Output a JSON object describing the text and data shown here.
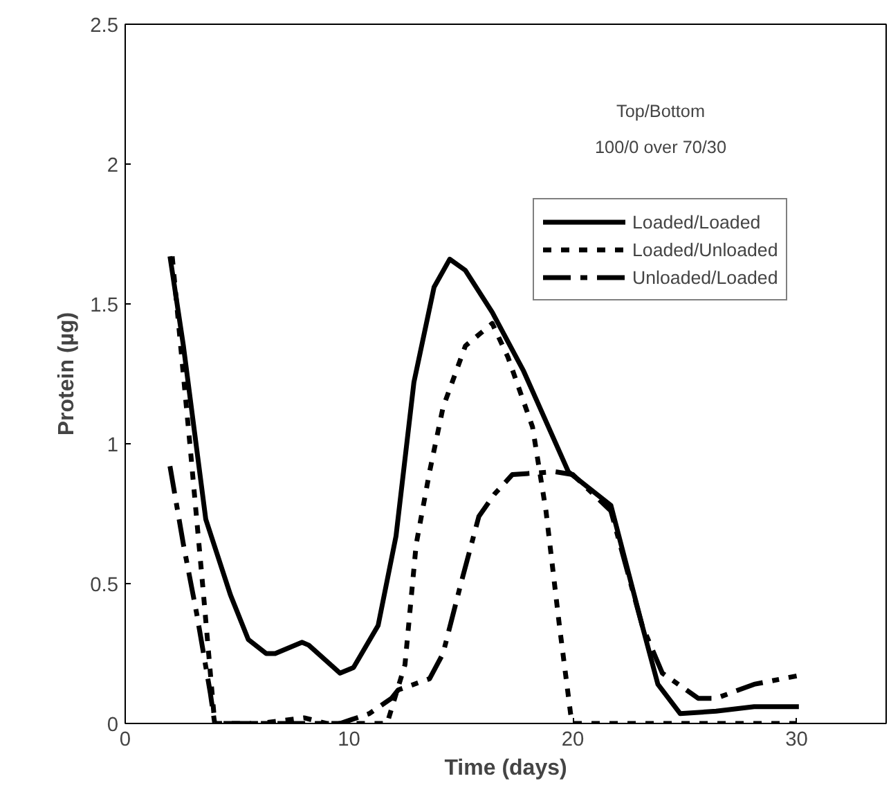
{
  "chart_data": {
    "type": "line",
    "xlabel": "Time (days)",
    "ylabel": "Protein (µg)",
    "annotations": [
      "Top/Bottom",
      "100/0 over 70/30"
    ],
    "xlim": [
      0,
      34
    ],
    "xticks": [
      0,
      10,
      20,
      30
    ],
    "ylim": [
      0,
      2.5
    ],
    "yticks": [
      0,
      0.5,
      1,
      1.5,
      2,
      2.5
    ],
    "grid": false,
    "legend": "top right",
    "marker": "none",
    "series": [
      {
        "name": "Loaded/Loaded",
        "color": "#000000",
        "line_style": "solid",
        "x": [
          2.0,
          2.6,
          3.6,
          4.7,
          5.5,
          6.3,
          6.7,
          7.9,
          8.2,
          9.6,
          10.2,
          11.3,
          12.1,
          12.9,
          13.8,
          14.5,
          15.2,
          16.4,
          17.8,
          19.8,
          21.7,
          23.1,
          23.8,
          24.8,
          26.4,
          28.1,
          30.1
        ],
        "values": [
          1.67,
          1.35,
          0.73,
          0.46,
          0.3,
          0.25,
          0.25,
          0.29,
          0.28,
          0.18,
          0.2,
          0.35,
          0.67,
          1.22,
          1.56,
          1.66,
          1.62,
          1.47,
          1.26,
          0.9,
          0.78,
          0.35,
          0.14,
          0.035,
          0.044,
          0.06,
          0.06
        ]
      },
      {
        "name": "Loaded/Unloaded",
        "color": "#000000",
        "line_style": "dotted",
        "x": [
          2.1,
          2.9,
          3.5,
          4.0,
          6.0,
          8.0,
          9.0,
          11.7,
          12.5,
          13.0,
          13.6,
          14.2,
          15.2,
          16.4,
          17.1,
          18.2,
          18.8,
          19.4,
          19.9,
          20.0,
          25.0,
          30.0
        ],
        "values": [
          1.67,
          0.99,
          0.46,
          0,
          0,
          0.02,
          0,
          0,
          0.21,
          0.64,
          0.9,
          1.13,
          1.35,
          1.43,
          1.31,
          1.06,
          0.76,
          0.35,
          0.035,
          0,
          0,
          0
        ]
      },
      {
        "name": "Unloaded/Loaded",
        "color": "#000000",
        "line_style": "dashed",
        "x": [
          2.0,
          2.6,
          3.2,
          3.8,
          4.0,
          9.6,
          10.9,
          11.9,
          12.2,
          13.6,
          14.2,
          15.0,
          15.8,
          16.5,
          17.3,
          19.2,
          20.0,
          21.7,
          23.1,
          24.0,
          25.6,
          26.4,
          28.1,
          30.0
        ],
        "values": [
          0.92,
          0.64,
          0.39,
          0.11,
          0,
          0,
          0.035,
          0.09,
          0.12,
          0.16,
          0.25,
          0.5,
          0.74,
          0.82,
          0.89,
          0.9,
          0.89,
          0.76,
          0.35,
          0.18,
          0.09,
          0.09,
          0.14,
          0.17
        ]
      }
    ]
  }
}
